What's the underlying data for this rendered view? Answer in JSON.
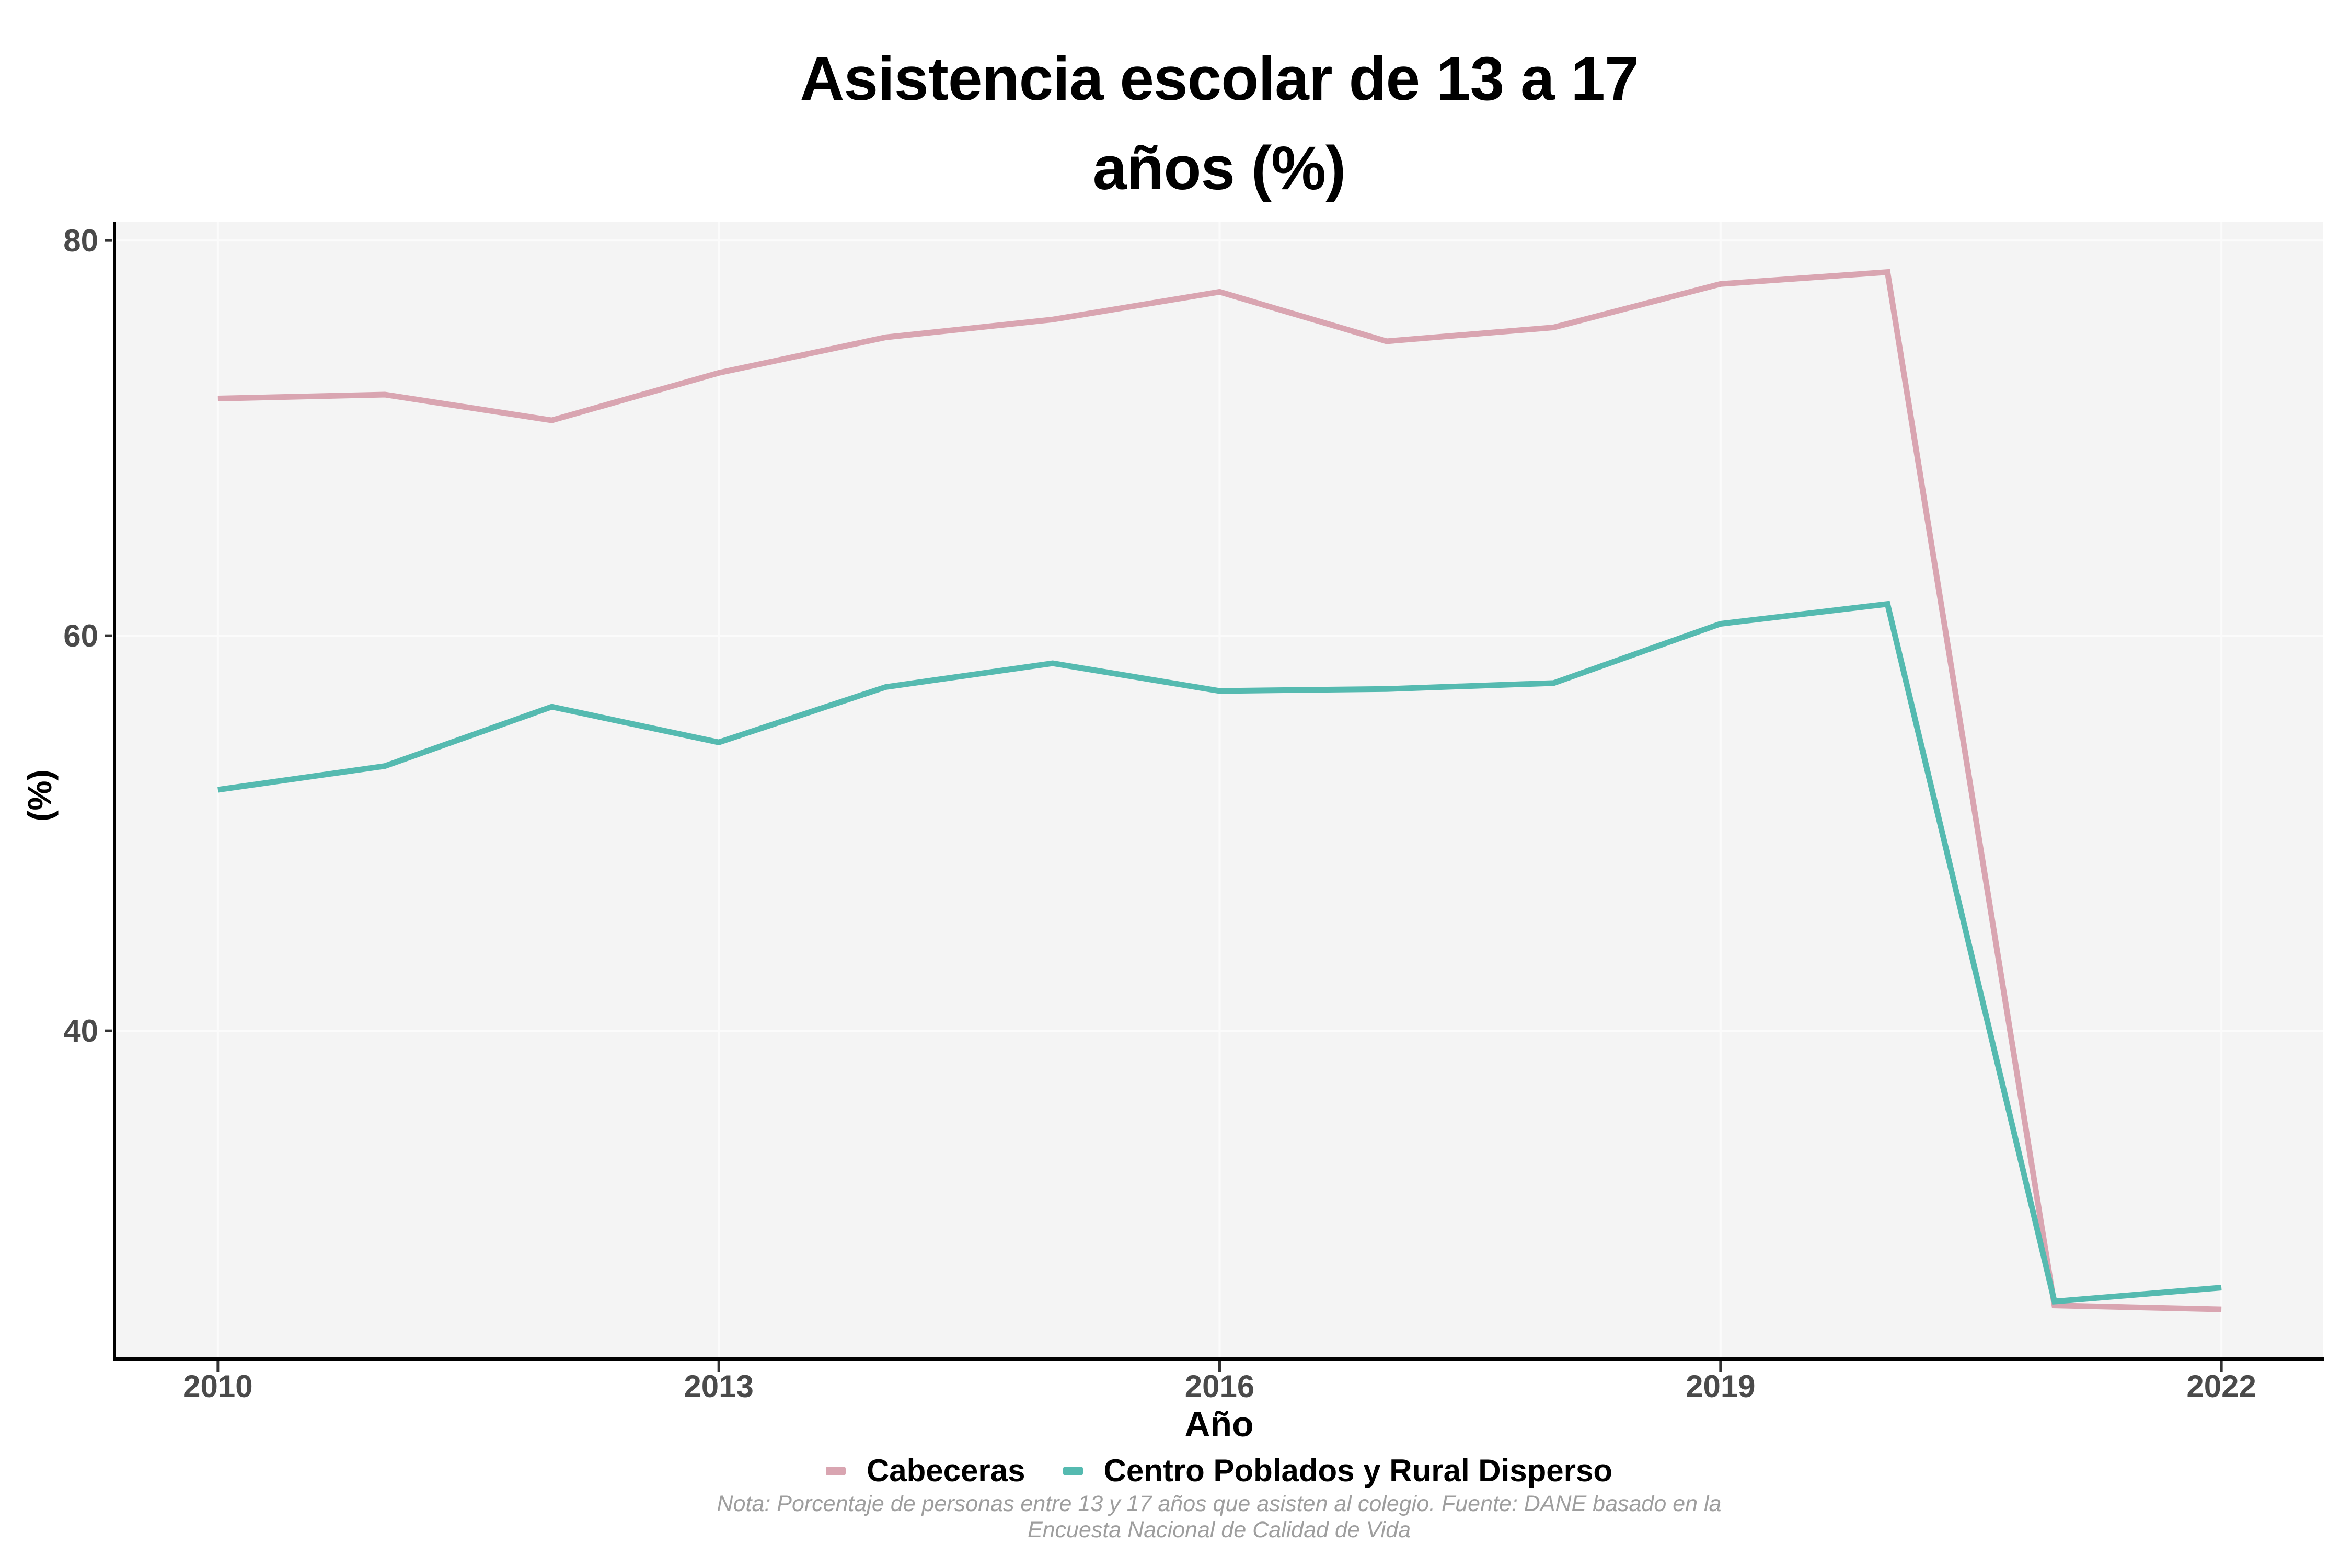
{
  "title": {
    "line1": "Asistencia escolar de 13 a 17",
    "line2": "años (%)"
  },
  "axes": {
    "x_label": "Año",
    "y_label": "(%)",
    "x_tick_labels": [
      "2010",
      "2013",
      "2016",
      "2019",
      "2022"
    ],
    "y_tick_labels": [
      "80",
      "60",
      "40"
    ]
  },
  "legend": {
    "items": [
      {
        "label": "Cabeceras",
        "color": "#d9a5b1"
      },
      {
        "label": "Centro Poblados y Rural Disperso",
        "color": "#55bab0"
      }
    ]
  },
  "footnote": {
    "line1": "Nota: Porcentaje de personas entre 13 y 17 años que asisten al colegio. Fuente: DANE basado en la",
    "line2": "Encuesta Nacional de Calidad de Vida"
  },
  "chart_data": {
    "type": "line",
    "title": "Asistencia escolar de 13 a 17 años (%)",
    "xlabel": "Año",
    "ylabel": "(%)",
    "x": [
      2010,
      2011,
      2012,
      2013,
      2014,
      2015,
      2016,
      2017,
      2018,
      2019,
      2020,
      2021,
      2022
    ],
    "series": [
      {
        "name": "Cabeceras",
        "color": "#d9a5b1",
        "values": [
          72.0,
          72.2,
          70.9,
          73.3,
          75.1,
          76.0,
          77.4,
          74.9,
          75.6,
          77.8,
          78.4,
          26.1,
          25.9
        ]
      },
      {
        "name": "Centro Poblados y Rural Disperso",
        "color": "#55bab0",
        "values": [
          52.2,
          53.4,
          56.4,
          54.6,
          57.4,
          58.6,
          57.2,
          57.3,
          57.6,
          60.6,
          61.6,
          26.3,
          27.0
        ]
      }
    ],
    "x_tick_values": [
      2010,
      2013,
      2016,
      2019,
      2022
    ],
    "y_tick_values": [
      80,
      60,
      40
    ],
    "x_range": [
      2009.39,
      2022.61
    ],
    "y_range": [
      23.47,
      80.93
    ],
    "grid": "major",
    "legend_position": "bottom",
    "panel_bg": "#f4f4f4",
    "grid_color": "#fbfbfb",
    "axis_line_color": "#000000",
    "tick_mark_color": "#333333",
    "tick_label_color": "#4a4a4a",
    "line_width": 11
  }
}
